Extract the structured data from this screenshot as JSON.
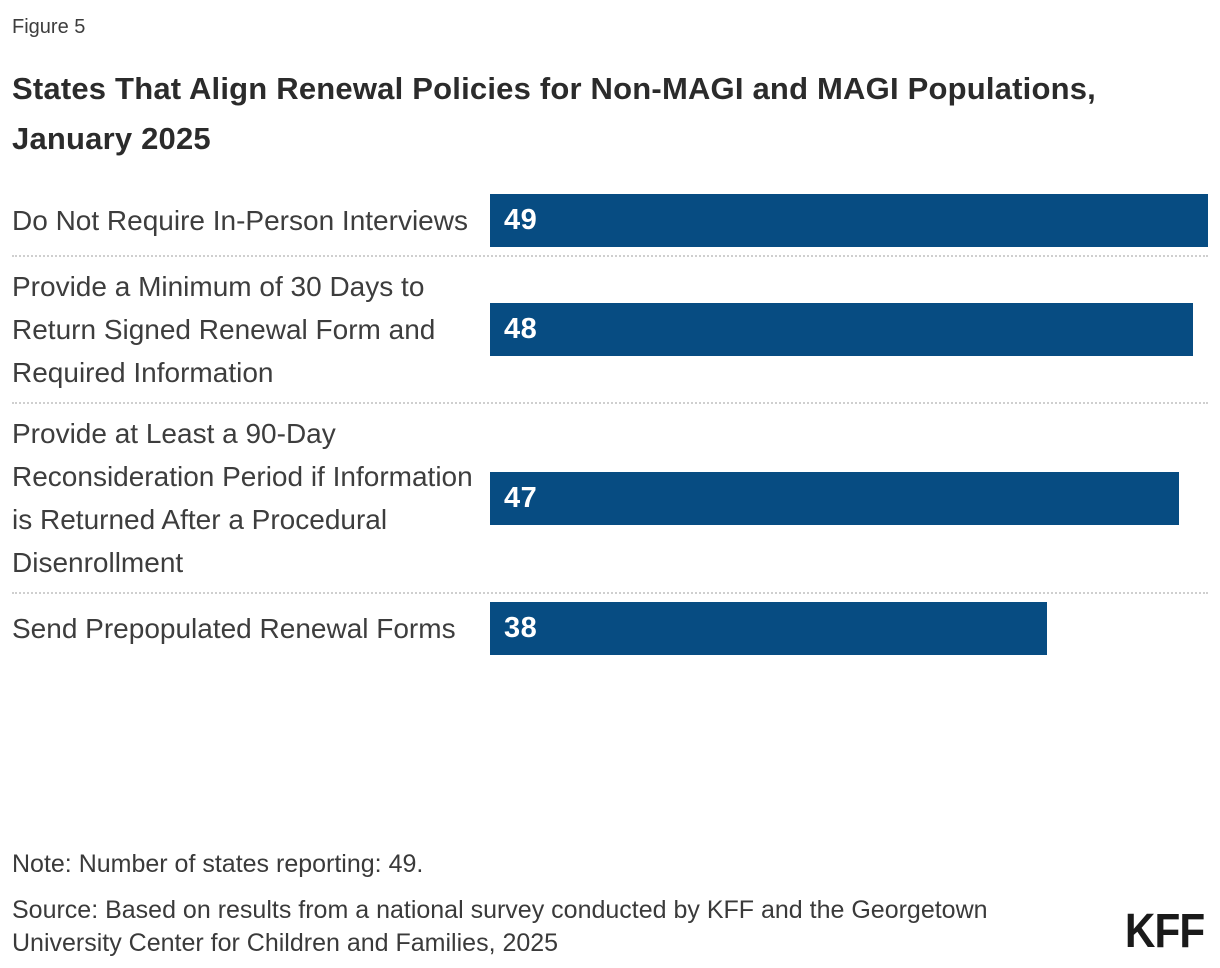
{
  "figure_label": "Figure 5",
  "title": "States That Align Renewal Policies for Non-MAGI and MAGI Populations, January 2025",
  "chart_data": {
    "type": "bar",
    "orientation": "horizontal",
    "title": "States That Align Renewal Policies for Non-MAGI and MAGI Populations, January 2025",
    "categories": [
      "Do Not Require In-Person Interviews",
      "Provide a Minimum of 30 Days to Return Signed Renewal Form and Required Information",
      "Provide at Least a 90-Day Reconsideration Period if Information is Returned After a Procedural Disenrollment",
      "Send Prepopulated Renewal Forms"
    ],
    "values": [
      49,
      48,
      47,
      38
    ],
    "xlim": [
      0,
      49
    ],
    "value_labels_shown": true,
    "grid": false,
    "legend": false,
    "bar_color": "#074C82",
    "value_label_color": "#ffffff",
    "separator_style": "dotted"
  },
  "note": "Note: Number of states reporting: 49.",
  "source": "Source: Based on results from a national survey conducted by KFF and the Georgetown University Center for Children and Families, 2025",
  "logo_text": "KFF"
}
